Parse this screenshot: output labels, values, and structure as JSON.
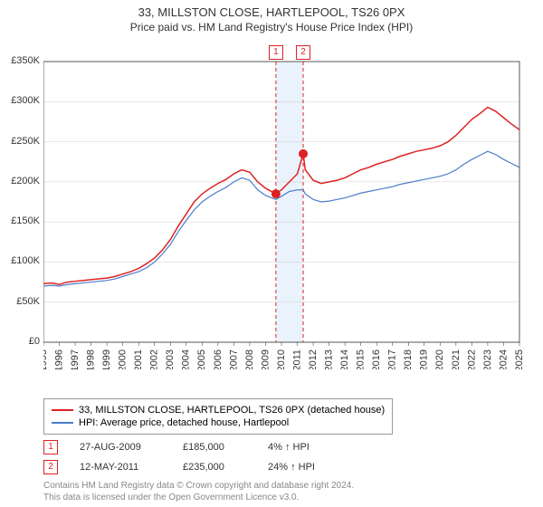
{
  "title": "33, MILLSTON CLOSE, HARTLEPOOL, TS26 0PX",
  "subtitle": "Price paid vs. HM Land Registry's House Price Index (HPI)",
  "chart": {
    "type": "line",
    "background_color": "#ffffff",
    "grid_color": "#d0d0d0",
    "axis_color": "#333333",
    "y": {
      "min": 0,
      "max": 350000,
      "step": 50000,
      "labels": [
        "£0",
        "£50K",
        "£100K",
        "£150K",
        "£200K",
        "£250K",
        "£300K",
        "£350K"
      ],
      "fontsize": 11
    },
    "x": {
      "min": 1995,
      "max": 2025,
      "step": 1,
      "labels": [
        "1995",
        "1996",
        "1997",
        "1998",
        "1999",
        "2000",
        "2001",
        "2002",
        "2003",
        "2004",
        "2005",
        "2006",
        "2007",
        "2008",
        "2009",
        "2010",
        "2011",
        "2012",
        "2013",
        "2014",
        "2015",
        "2016",
        "2017",
        "2018",
        "2019",
        "2020",
        "2021",
        "2022",
        "2023",
        "2024",
        "2025"
      ],
      "fontsize": 11,
      "rotation": -90
    },
    "highlight_band": {
      "x_start": 2009.65,
      "x_end": 2011.37,
      "fill": "#eaf2fb"
    },
    "vlines": [
      {
        "x": 2009.65,
        "color": "#dd2222",
        "dash": "4,3",
        "width": 1
      },
      {
        "x": 2011.37,
        "color": "#dd2222",
        "dash": "4,3",
        "width": 1
      }
    ],
    "series": [
      {
        "name": "price_paid",
        "label": "33, MILLSTON CLOSE, HARTLEPOOL, TS26 0PX (detached house)",
        "color": "#dd2222",
        "width": 1.5,
        "points": [
          [
            1995.0,
            73000
          ],
          [
            1995.5,
            74000
          ],
          [
            1996.0,
            72000
          ],
          [
            1996.5,
            75000
          ],
          [
            1997.0,
            76000
          ],
          [
            1997.5,
            77000
          ],
          [
            1998.0,
            78000
          ],
          [
            1998.5,
            79000
          ],
          [
            1999.0,
            80000
          ],
          [
            1999.5,
            82000
          ],
          [
            2000.0,
            85000
          ],
          [
            2000.5,
            88000
          ],
          [
            2001.0,
            92000
          ],
          [
            2001.5,
            98000
          ],
          [
            2002.0,
            105000
          ],
          [
            2002.5,
            115000
          ],
          [
            2003.0,
            128000
          ],
          [
            2003.5,
            145000
          ],
          [
            2004.0,
            160000
          ],
          [
            2004.5,
            175000
          ],
          [
            2005.0,
            185000
          ],
          [
            2005.5,
            192000
          ],
          [
            2006.0,
            198000
          ],
          [
            2006.5,
            203000
          ],
          [
            2007.0,
            210000
          ],
          [
            2007.5,
            215000
          ],
          [
            2008.0,
            212000
          ],
          [
            2008.5,
            200000
          ],
          [
            2009.0,
            192000
          ],
          [
            2009.65,
            185000
          ],
          [
            2010.0,
            190000
          ],
          [
            2010.5,
            200000
          ],
          [
            2011.0,
            210000
          ],
          [
            2011.37,
            235000
          ],
          [
            2011.5,
            215000
          ],
          [
            2012.0,
            202000
          ],
          [
            2012.5,
            198000
          ],
          [
            2013.0,
            200000
          ],
          [
            2013.5,
            202000
          ],
          [
            2014.0,
            205000
          ],
          [
            2014.5,
            210000
          ],
          [
            2015.0,
            215000
          ],
          [
            2015.5,
            218000
          ],
          [
            2016.0,
            222000
          ],
          [
            2016.5,
            225000
          ],
          [
            2017.0,
            228000
          ],
          [
            2017.5,
            232000
          ],
          [
            2018.0,
            235000
          ],
          [
            2018.5,
            238000
          ],
          [
            2019.0,
            240000
          ],
          [
            2019.5,
            242000
          ],
          [
            2020.0,
            245000
          ],
          [
            2020.5,
            250000
          ],
          [
            2021.0,
            258000
          ],
          [
            2021.5,
            268000
          ],
          [
            2022.0,
            278000
          ],
          [
            2022.5,
            285000
          ],
          [
            2023.0,
            293000
          ],
          [
            2023.5,
            288000
          ],
          [
            2024.0,
            280000
          ],
          [
            2024.5,
            272000
          ],
          [
            2025.0,
            265000
          ]
        ]
      },
      {
        "name": "hpi",
        "label": "HPI: Average price, detached house, Hartlepool",
        "color": "#4a7ec8",
        "width": 1.2,
        "points": [
          [
            1995.0,
            70000
          ],
          [
            1995.5,
            71000
          ],
          [
            1996.0,
            70000
          ],
          [
            1996.5,
            72000
          ],
          [
            1997.0,
            73000
          ],
          [
            1997.5,
            74000
          ],
          [
            1998.0,
            75000
          ],
          [
            1998.5,
            76000
          ],
          [
            1999.0,
            77000
          ],
          [
            1999.5,
            79000
          ],
          [
            2000.0,
            82000
          ],
          [
            2000.5,
            85000
          ],
          [
            2001.0,
            88000
          ],
          [
            2001.5,
            93000
          ],
          [
            2002.0,
            100000
          ],
          [
            2002.5,
            110000
          ],
          [
            2003.0,
            122000
          ],
          [
            2003.5,
            138000
          ],
          [
            2004.0,
            152000
          ],
          [
            2004.5,
            165000
          ],
          [
            2005.0,
            175000
          ],
          [
            2005.5,
            182000
          ],
          [
            2006.0,
            188000
          ],
          [
            2006.5,
            193000
          ],
          [
            2007.0,
            200000
          ],
          [
            2007.5,
            205000
          ],
          [
            2008.0,
            202000
          ],
          [
            2008.5,
            190000
          ],
          [
            2009.0,
            183000
          ],
          [
            2009.65,
            178000
          ],
          [
            2010.0,
            182000
          ],
          [
            2010.5,
            188000
          ],
          [
            2011.0,
            190000
          ],
          [
            2011.37,
            190000
          ],
          [
            2011.5,
            185000
          ],
          [
            2012.0,
            178000
          ],
          [
            2012.5,
            175000
          ],
          [
            2013.0,
            176000
          ],
          [
            2013.5,
            178000
          ],
          [
            2014.0,
            180000
          ],
          [
            2014.5,
            183000
          ],
          [
            2015.0,
            186000
          ],
          [
            2015.5,
            188000
          ],
          [
            2016.0,
            190000
          ],
          [
            2016.5,
            192000
          ],
          [
            2017.0,
            194000
          ],
          [
            2017.5,
            197000
          ],
          [
            2018.0,
            199000
          ],
          [
            2018.5,
            201000
          ],
          [
            2019.0,
            203000
          ],
          [
            2019.5,
            205000
          ],
          [
            2020.0,
            207000
          ],
          [
            2020.5,
            210000
          ],
          [
            2021.0,
            215000
          ],
          [
            2021.5,
            222000
          ],
          [
            2022.0,
            228000
          ],
          [
            2022.5,
            233000
          ],
          [
            2023.0,
            238000
          ],
          [
            2023.5,
            234000
          ],
          [
            2024.0,
            228000
          ],
          [
            2024.5,
            223000
          ],
          [
            2025.0,
            218000
          ]
        ]
      }
    ],
    "sale_points": [
      {
        "x": 2009.65,
        "y": 185000,
        "color": "#dd2222",
        "size": 5
      },
      {
        "x": 2011.37,
        "y": 235000,
        "color": "#dd2222",
        "size": 5
      }
    ],
    "marker_labels": [
      {
        "num": "1",
        "x": 2009.65,
        "color": "#dd2222"
      },
      {
        "num": "2",
        "x": 2011.37,
        "color": "#dd2222"
      }
    ]
  },
  "legend": {
    "border_color": "#999999",
    "fontsize": 11
  },
  "sales": [
    {
      "num": "1",
      "date": "27-AUG-2009",
      "price": "£185,000",
      "pct": "4%",
      "arrow": "↑",
      "suffix": "HPI",
      "color": "#dd2222"
    },
    {
      "num": "2",
      "date": "12-MAY-2011",
      "price": "£235,000",
      "pct": "24%",
      "arrow": "↑",
      "suffix": "HPI",
      "color": "#dd2222"
    }
  ],
  "footer": {
    "line1": "Contains HM Land Registry data © Crown copyright and database right 2024.",
    "line2": "This data is licensed under the Open Government Licence v3.0."
  }
}
